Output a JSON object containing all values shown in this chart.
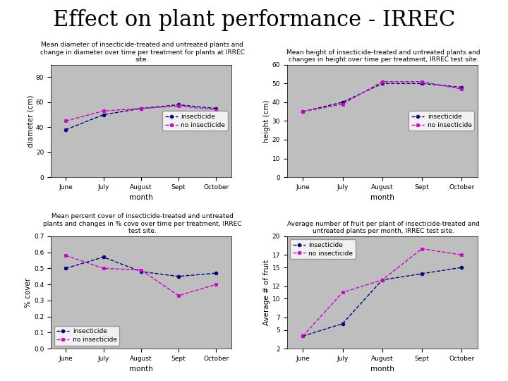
{
  "title": "Effect on plant performance - IRREC",
  "months": [
    "June",
    "July",
    "August",
    "Sept",
    "October"
  ],
  "chart1": {
    "subtitle_lines": [
      "Mean diameter of insecticide-treated and untreated plants and",
      "change in diameter over time per treatment for plants at IRREC",
      "site."
    ],
    "ylabel": "diameter (cm)",
    "xlabel": "month",
    "ylim": [
      0,
      90
    ],
    "yticks": [
      0,
      20,
      40,
      60,
      80
    ],
    "insecticide": [
      38,
      50,
      55,
      58,
      55
    ],
    "no_insecticide": [
      45,
      53,
      55,
      57,
      54
    ],
    "legend_loc": "center right"
  },
  "chart2": {
    "subtitle_lines": [
      "Mean height of insecticide-treated and untreated plants and",
      "changes in height over time per treatment, IRREC test site."
    ],
    "ylabel": "height (cm)",
    "xlabel": "month",
    "ylim": [
      0,
      60
    ],
    "yticks": [
      0,
      10,
      20,
      30,
      40,
      50,
      60
    ],
    "insecticide": [
      35,
      40,
      50,
      50,
      48
    ],
    "no_insecticide": [
      35,
      39,
      51,
      51,
      47
    ],
    "legend_loc": "center right"
  },
  "chart3": {
    "subtitle_lines": [
      "Mean percent cover of insecticide-treated and untreated",
      "plants and changes in % cove over time per treatment, IRREC",
      "test site."
    ],
    "ylabel": "% cover",
    "xlabel": "month",
    "ylim": [
      0,
      0.7
    ],
    "yticks": [
      0,
      0.1,
      0.2,
      0.3,
      0.4,
      0.5,
      0.6,
      0.7
    ],
    "insecticide": [
      0.5,
      0.57,
      0.48,
      0.45,
      0.47
    ],
    "no_insecticide": [
      0.58,
      0.5,
      0.49,
      0.33,
      0.4
    ],
    "legend_loc": "lower left"
  },
  "chart4": {
    "subtitle_lines": [
      "Average number of fruit per plant of insecticide-treated and",
      "untreated plants per month, IRREC test site."
    ],
    "ylabel": "Average # of fruit",
    "xlabel": "month",
    "ylim": [
      2,
      20
    ],
    "yticks": [
      2,
      5,
      7,
      10,
      12,
      15,
      17,
      20
    ],
    "insecticide": [
      4,
      6,
      13,
      14,
      15
    ],
    "no_insecticide": [
      4,
      11,
      13,
      18,
      17
    ],
    "legend_loc": "upper left"
  },
  "color_insecticide": "#000080",
  "color_no_insecticide": "#CC00CC",
  "bg_color": "#BEBEBE",
  "figure_bg": "#FFFFFF",
  "title_fontsize": 22,
  "subtitle_fontsize": 6.5,
  "tick_fontsize": 6.5,
  "label_fontsize": 7.5,
  "legend_fontsize": 6.5
}
